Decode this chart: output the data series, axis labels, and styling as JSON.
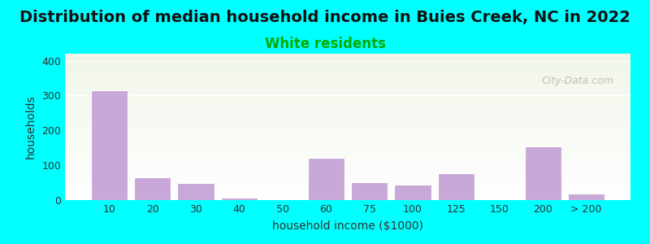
{
  "title": "Distribution of median household income in Buies Creek, NC in 2022",
  "subtitle": "White residents",
  "xlabel": "household income ($1000)",
  "ylabel": "households",
  "background_color": "#00FFFF",
  "plot_bg_gradient_top": "#f0f5e8",
  "plot_bg_gradient_bottom": "#ffffff",
  "bar_color": "#c8a8d8",
  "bar_edge_color": "#ffffff",
  "categories": [
    "10",
    "20",
    "30",
    "40",
    "50",
    "60",
    "75",
    "100",
    "125",
    "150",
    "200",
    "> 200"
  ],
  "values": [
    315,
    65,
    48,
    8,
    2,
    122,
    52,
    45,
    78,
    2,
    153,
    18
  ],
  "ylim": [
    0,
    420
  ],
  "yticks": [
    0,
    100,
    200,
    300,
    400
  ],
  "title_fontsize": 14,
  "subtitle_fontsize": 12,
  "subtitle_color": "#00AA00",
  "axis_label_fontsize": 10,
  "tick_fontsize": 9,
  "watermark_text": "City-Data.com",
  "watermark_color": "#aaaaaa"
}
